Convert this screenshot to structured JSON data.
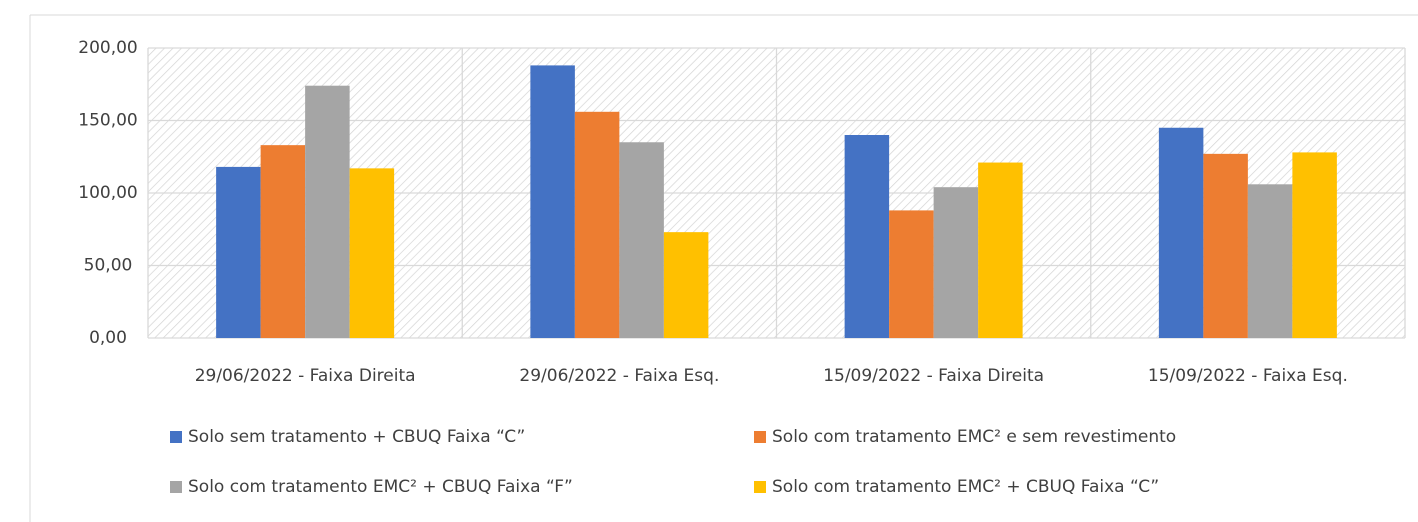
{
  "chart_data": {
    "type": "bar",
    "categories": [
      "29/06/2022 - Faixa Direita",
      "29/06/2022 - Faixa Esq.",
      "15/09/2022 - Faixa Direita",
      "15/09/2022 - Faixa Esq."
    ],
    "series": [
      {
        "name": "Solo sem tratamento + CBUQ Faixa “C”",
        "color": "#4472c4",
        "values": [
          118,
          188,
          140,
          145
        ]
      },
      {
        "name": "Solo com tratamento EMC² e sem revestimento",
        "color": "#ed7d31",
        "values": [
          133,
          156,
          88,
          127
        ]
      },
      {
        "name": "Solo com tratamento EMC² + CBUQ Faixa “F”",
        "color": "#a5a5a5",
        "values": [
          174,
          135,
          104,
          106
        ]
      },
      {
        "name": "Solo com tratamento EMC² + CBUQ Faixa “C”",
        "color": "#ffc000",
        "values": [
          117,
          73,
          121,
          128
        ]
      }
    ],
    "ylim": [
      0,
      200
    ],
    "yticks": [
      {
        "value": 0,
        "label": "0,00"
      },
      {
        "value": 50,
        "label": "50,00"
      },
      {
        "value": 100,
        "label": "100,00"
      },
      {
        "value": 150,
        "label": "150,00"
      },
      {
        "value": 200,
        "label": "200,00"
      }
    ],
    "grid": true
  }
}
